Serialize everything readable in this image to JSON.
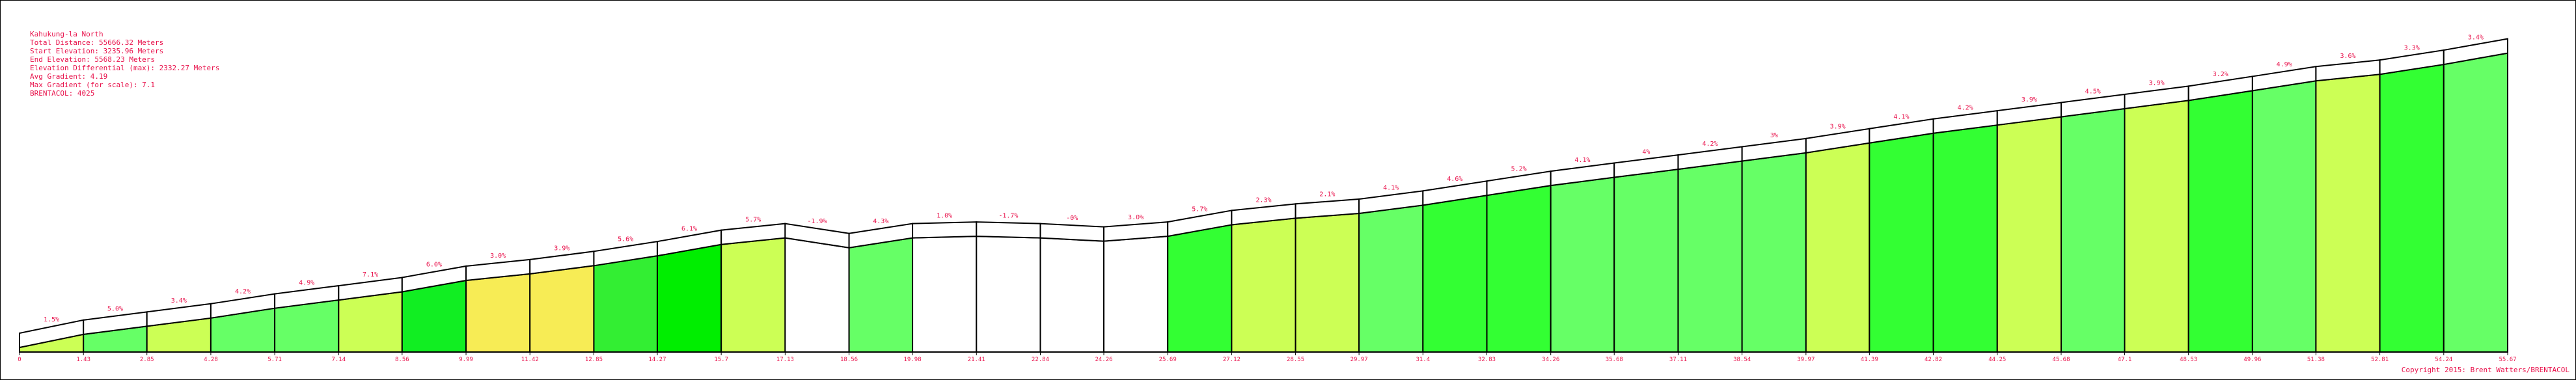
{
  "chart_data": {
    "type": "climb-profile",
    "title": "Kahukung-la North",
    "info_lines": [
      "Total Distance: 55666.32 Meters",
      "Start Elevation: 3235.96 Meters",
      "End Elevation: 5568.23 Meters",
      "Elevation Differential (max): 2332.27 Meters",
      "Avg Gradient: 4.19",
      "Max Gradient (for scale): 7.1",
      "BRENTACOL: 4025"
    ],
    "copyright": "Copyright 2015: Brent Watters/BRENTACOL",
    "x": [
      0,
      1.43,
      2.85,
      4.28,
      5.71,
      7.14,
      8.56,
      9.99,
      11.42,
      12.85,
      14.27,
      15.7,
      17.13,
      18.56,
      19.98,
      21.41,
      22.84,
      24.26,
      25.69,
      27.12,
      28.55,
      29.97,
      31.4,
      32.83,
      34.26,
      35.68,
      37.11,
      38.54,
      39.97,
      41.39,
      42.82,
      44.25,
      45.68,
      47.1,
      48.53,
      49.96,
      51.38,
      52.81,
      54.24,
      55.67
    ],
    "elevations": [
      3236,
      3340,
      3404,
      3469,
      3547,
      3612,
      3677,
      3767,
      3819,
      3884,
      3962,
      4052,
      4104,
      4026,
      4104,
      4117,
      4104,
      4078,
      4117,
      4208,
      4260,
      4298,
      4363,
      4441,
      4519,
      4584,
      4648,
      4713,
      4778,
      4856,
      4933,
      4998,
      5063,
      5128,
      5193,
      5270,
      5348,
      5400,
      5478,
      5568
    ],
    "gradient_labels": [
      "1.5%",
      "5.0%",
      "3.4%",
      "4.2%",
      "4.9%",
      "7.1%",
      "6.0%",
      "3.0%",
      "3.9%",
      "5.6%",
      "6.1%",
      "5.7%",
      "-1.9%",
      "4.3%",
      "1.0%",
      "-1.7%",
      "-0%",
      "3.0%",
      "5.7%",
      "2.3%",
      "2.1%",
      "4.1%",
      "4.6%",
      "5.2%",
      "4.1%",
      "4%",
      "4.2%",
      "3%",
      "3.9%",
      "4.1%",
      "4.2%",
      "3.9%",
      "4.5%",
      "3.9%",
      "3.2%",
      "4.9%",
      "3.6%",
      "3.3%",
      "3.4%"
    ],
    "segment_colors": [
      "#ccff55",
      "#66ff66",
      "#ccff55",
      "#66ff66",
      "#66ff66",
      "#ccff55",
      "#11ee22",
      "#f7ec55",
      "#f7ec55",
      "#33ee33",
      "#00ee00",
      "#ccff55",
      "#ffffff",
      "#66ff66",
      "#ffffff",
      "#ffffff",
      "#ffffff",
      "#ffffff",
      "#33ff33",
      "#ccff55",
      "#ccff55",
      "#66ff66",
      "#33ff33",
      "#33ff33",
      "#66ff66",
      "#66ff66",
      "#66ff66",
      "#66ff66",
      "#ccff55",
      "#33ff33",
      "#33ff33",
      "#ccff55",
      "#66ff66",
      "#ccff55",
      "#33ff33",
      "#66ff66",
      "#ccff55",
      "#33ff33",
      "#66ff66"
    ],
    "xlim": [
      0,
      55.67
    ],
    "ylim": [
      3200,
      5700
    ],
    "xticks": [
      0,
      1.43,
      2.85,
      4.28,
      5.71,
      7.14,
      8.56,
      9.99,
      11.42,
      12.85,
      14.27,
      15.7,
      17.13,
      18.56,
      19.98,
      21.41,
      22.84,
      24.26,
      25.69,
      27.12,
      28.55,
      29.97,
      31.4,
      32.83,
      34.26,
      35.68,
      37.11,
      38.54,
      39.97,
      41.39,
      42.82,
      44.25,
      45.68,
      47.1,
      48.53,
      49.96,
      51.38,
      52.81,
      54.24,
      55.67
    ]
  }
}
